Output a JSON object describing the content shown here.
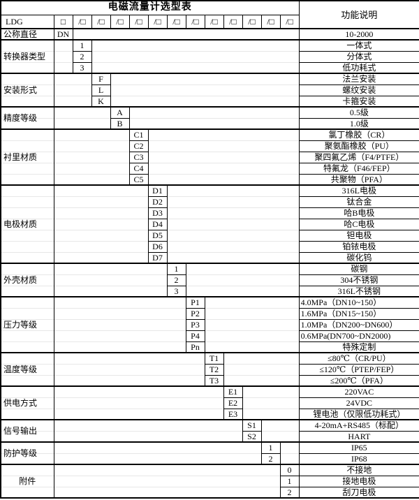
{
  "title": "电磁流量计选型表",
  "right_header": "功能说明",
  "model_row": {
    "prefix": "LDG",
    "first_box": "□",
    "slot": "/□",
    "slot_count": 12
  },
  "layout_code_columns": 13,
  "sections": [
    {
      "label": "公称直径",
      "col": 1,
      "rows": [
        {
          "code": "DN",
          "desc": "10-2000"
        }
      ]
    },
    {
      "label": "转换器类型",
      "col": 2,
      "rows": [
        {
          "code": "1",
          "desc": "一体式"
        },
        {
          "code": "2",
          "desc": "分体式"
        },
        {
          "code": "3",
          "desc": "低功耗式"
        }
      ]
    },
    {
      "label": "安装形式",
      "col": 3,
      "rows": [
        {
          "code": "F",
          "desc": "法兰安装"
        },
        {
          "code": "L",
          "desc": "螺纹安装"
        },
        {
          "code": "K",
          "desc": "卡箍安装"
        }
      ]
    },
    {
      "label": "精度等级",
      "col": 4,
      "rows": [
        {
          "code": "A",
          "desc": "0.5级"
        },
        {
          "code": "B",
          "desc": "1.0级"
        }
      ]
    },
    {
      "label": "衬里材质",
      "col": 5,
      "rows": [
        {
          "code": "C1",
          "desc": "氯丁橡胶（CR）"
        },
        {
          "code": "C2",
          "desc": "聚氨酯橡胶（PU）"
        },
        {
          "code": "C3",
          "desc": "聚四氟乙烯（F4/PTFE）"
        },
        {
          "code": "C4",
          "desc": "特氟龙（F46/FEP）"
        },
        {
          "code": "C5",
          "desc": "共聚物（PFA）"
        }
      ]
    },
    {
      "label": "电极材质",
      "col": 6,
      "rows": [
        {
          "code": "D1",
          "desc": "316L电极"
        },
        {
          "code": "D2",
          "desc": "钛合金"
        },
        {
          "code": "D3",
          "desc": "哈B电极"
        },
        {
          "code": "D4",
          "desc": "哈C电极"
        },
        {
          "code": "D5",
          "desc": "钽电极"
        },
        {
          "code": "D6",
          "desc": "铂铱电极"
        },
        {
          "code": "D7",
          "desc": "碳化钨"
        }
      ]
    },
    {
      "label": "外壳材质",
      "col": 7,
      "rows": [
        {
          "code": "1",
          "desc": "碳钢"
        },
        {
          "code": "2",
          "desc": "304不锈钢"
        },
        {
          "code": "3",
          "desc": "316L不锈钢"
        }
      ]
    },
    {
      "label": "压力等级",
      "col": 8,
      "rows": [
        {
          "code": "P1",
          "desc": "4.0MPa（DN10~150）",
          "align": "left"
        },
        {
          "code": "P2",
          "desc": "1.6MPa（DN15~150）",
          "align": "left"
        },
        {
          "code": "P3",
          "desc": "1.0MPa（DN200~DN600）",
          "align": "left"
        },
        {
          "code": "P4",
          "desc": "0.6MPa(DN700~DN2000)",
          "align": "left"
        },
        {
          "code": "Pn",
          "desc": "特殊定制"
        }
      ]
    },
    {
      "label": "温度等级",
      "col": 9,
      "rows": [
        {
          "code": "T1",
          "desc": "≤80℃（CR/PU）"
        },
        {
          "code": "T2",
          "desc": "≤120℃（PTEP/FEP）"
        },
        {
          "code": "T3",
          "desc": "≤200℃（PFA）"
        }
      ]
    },
    {
      "label": "供电方式",
      "col": 10,
      "rows": [
        {
          "code": "E1",
          "desc": "220VAC"
        },
        {
          "code": "E2",
          "desc": "24VDC"
        },
        {
          "code": "E3",
          "desc": "锂电池（仅限低功耗式）"
        }
      ]
    },
    {
      "label": "信号输出",
      "col": 11,
      "rows": [
        {
          "code": "S1",
          "desc": "4-20mA+RS485（标配）"
        },
        {
          "code": "S2",
          "desc": "HART"
        }
      ]
    },
    {
      "label": "防护等级",
      "col": 12,
      "rows": [
        {
          "code": "1",
          "desc": "IP65"
        },
        {
          "code": "2",
          "desc": "IP68"
        }
      ]
    },
    {
      "label": "附件",
      "col": 13,
      "rows": [
        {
          "code": "0",
          "desc": "不接地"
        },
        {
          "code": "1",
          "desc": "接地电极"
        },
        {
          "code": "2",
          "desc": "刮刀电极"
        }
      ]
    }
  ],
  "colors": {
    "border": "#000000",
    "background": "#ffffff",
    "text": "#000000",
    "faint_gridline": "#e7e7e7"
  }
}
